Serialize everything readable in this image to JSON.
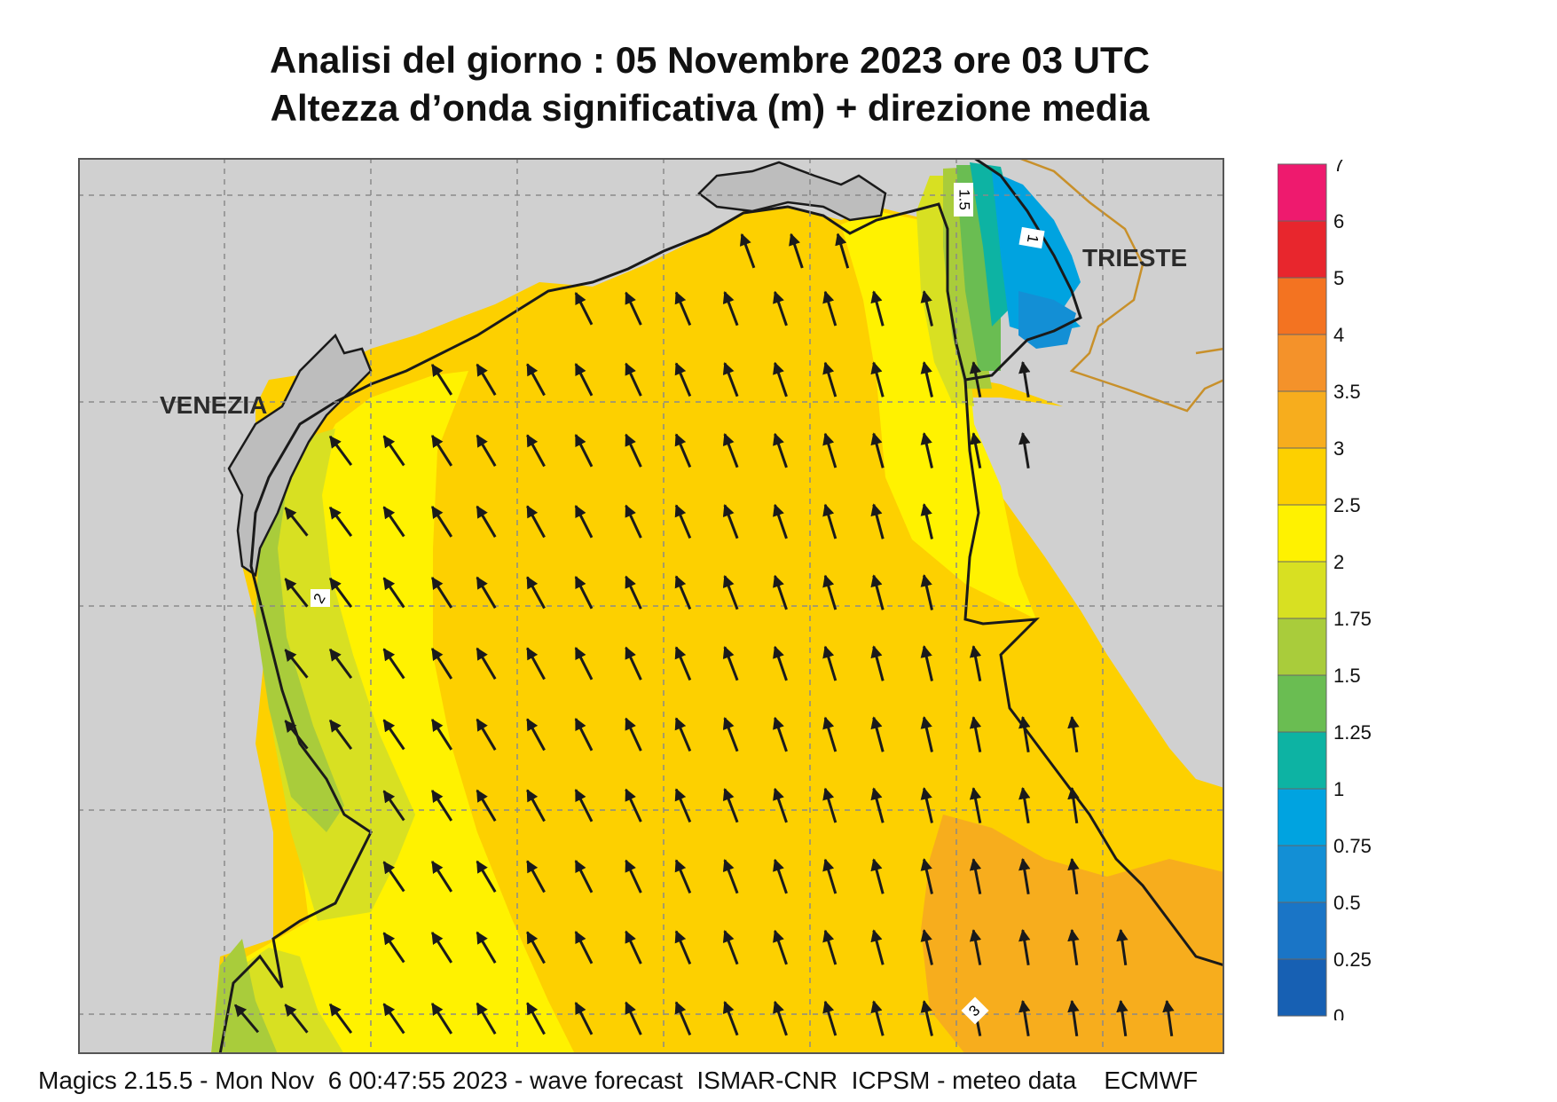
{
  "title": {
    "line1": "Analisi del giorno :  05 Novembre  2023   ore 03 UTC",
    "line2": "Altezza d’onda significativa (m) + direzione media"
  },
  "map": {
    "places": {
      "venice": "VENEZIA",
      "trieste": "TRIESTE"
    },
    "contour_labels": [
      "1.5",
      "1",
      "2",
      "3"
    ],
    "land_color": "#d0d0d0",
    "coast_color": "#1a1a1a",
    "border_color": "#c8902a",
    "arrow_color": "#1a1a1a",
    "mean_wave_direction": "north-northwest (toward the Gulf of Trieste)"
  },
  "legend": {
    "labels": [
      "7",
      "6",
      "5",
      "4",
      "3.5",
      "3",
      "2.5",
      "2",
      "1.75",
      "1.5",
      "1.25",
      "1",
      "0.75",
      "0.5",
      "0.25",
      "0"
    ],
    "colors": [
      "#ee1a6e",
      "#e8262d",
      "#f37321",
      "#f4922a",
      "#f7ad1d",
      "#fdd000",
      "#fff200",
      "#d8e022",
      "#a9cc3b",
      "#6abd52",
      "#0db3a3",
      "#00a3e0",
      "#138fd5",
      "#1a75c6",
      "#1760b3"
    ]
  },
  "footer": "Magics 2.15.5 - Mon Nov  6 00:47:55 2023 - wave forecast  ISMAR-CNR  ICPSM - meteo data    ECMWF"
}
